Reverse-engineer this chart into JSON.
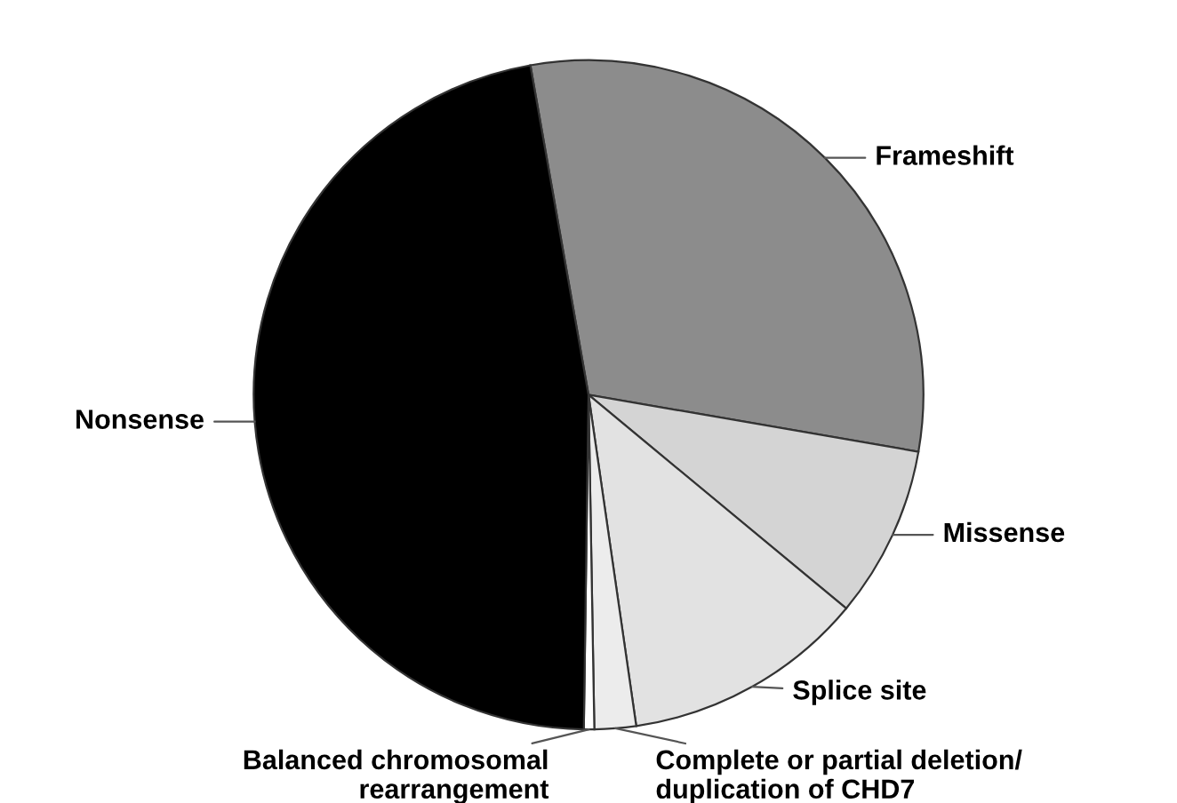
{
  "chart_data": {
    "type": "pie",
    "categories": [
      "Frameshift",
      "Missense",
      "Splice site",
      "Complete or partial deletion/\nduplication of CHD7",
      "Balanced chromosomal\nrearrangement",
      "Nonsense"
    ],
    "values": [
      30.5,
      8.3,
      11.7,
      2,
      0.5,
      47
    ],
    "colors": [
      "#8c8c8c",
      "#d4d4d4",
      "#e2e2e2",
      "#ececec",
      "#ffffff",
      "#000000"
    ],
    "legend": false
  }
}
